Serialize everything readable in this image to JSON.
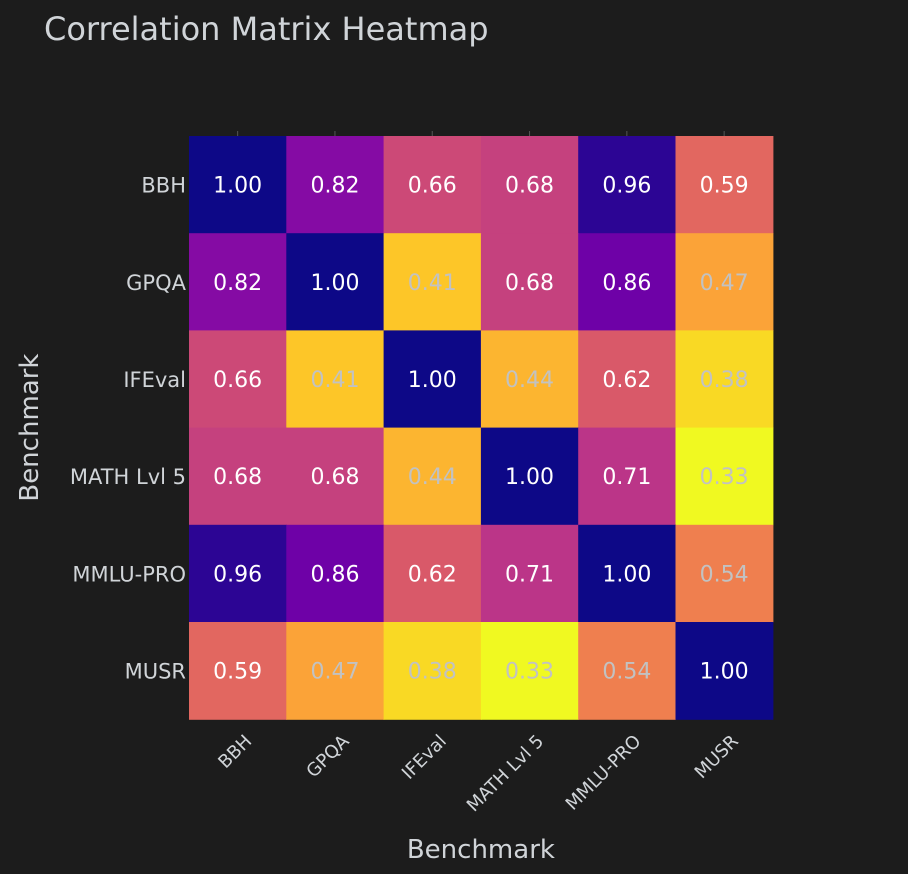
{
  "chart_data": {
    "type": "heatmap",
    "title": "Correlation Matrix Heatmap",
    "xlabel": "Benchmark",
    "ylabel": "Benchmark",
    "x_categories": [
      "BBH",
      "GPQA",
      "IFEval",
      "MATH Lvl 5",
      "MMLU-PRO",
      "MUSR"
    ],
    "y_categories": [
      "BBH",
      "GPQA",
      "IFEval",
      "MATH Lvl 5",
      "MMLU-PRO",
      "MUSR"
    ],
    "values": [
      [
        1.0,
        0.82,
        0.66,
        0.68,
        0.96,
        0.59
      ],
      [
        0.82,
        1.0,
        0.41,
        0.68,
        0.86,
        0.47
      ],
      [
        0.66,
        0.41,
        1.0,
        0.44,
        0.62,
        0.38
      ],
      [
        0.68,
        0.68,
        0.44,
        1.0,
        0.71,
        0.33
      ],
      [
        0.96,
        0.86,
        0.62,
        0.71,
        1.0,
        0.54
      ],
      [
        0.59,
        0.47,
        0.38,
        0.33,
        0.54,
        1.0
      ]
    ],
    "colorscale": "plasma (reversed)",
    "value_range": [
      0.33,
      1.0
    ],
    "show_values": true
  }
}
